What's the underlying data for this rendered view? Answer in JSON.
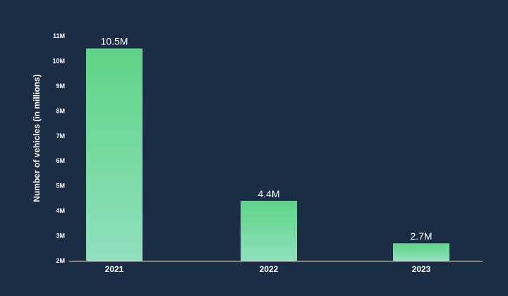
{
  "chart_data": {
    "type": "bar",
    "categories": [
      "2021",
      "2022",
      "2023"
    ],
    "values": [
      10.5,
      4.4,
      2.7
    ],
    "value_labels": [
      "10.5M",
      "4.4M",
      "2.7M"
    ],
    "title": "",
    "xlabel": "",
    "ylabel": "Number of vehicles (in millions)",
    "ylim": [
      2,
      11
    ],
    "yticks": [
      2,
      3,
      4,
      5,
      6,
      7,
      8,
      9,
      10,
      11
    ],
    "ytick_labels": [
      "2M",
      "3M",
      "4M",
      "5M",
      "6M",
      "7M",
      "8M",
      "9M",
      "10M",
      "11M"
    ],
    "grid": false,
    "legend": "none",
    "colors": {
      "background": "#1b2d44",
      "bar_top": "#5fd486",
      "bar_bottom": "#8fe0bd",
      "axis": "#ffffff",
      "text": "#ffffff"
    }
  }
}
